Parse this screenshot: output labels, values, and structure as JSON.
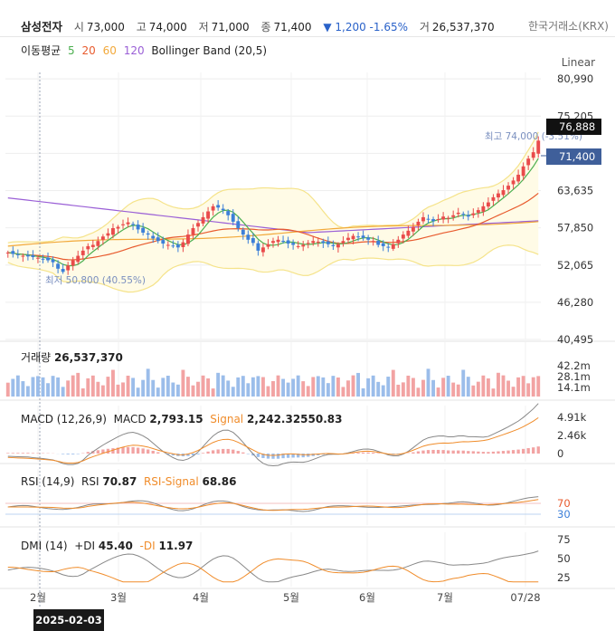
{
  "header": {
    "name": "삼성전자",
    "open_label": "시",
    "open": "73,000",
    "high_label": "고",
    "high": "74,000",
    "low_label": "저",
    "low": "71,000",
    "close_label": "종",
    "close": "71,400",
    "change": "▼ 1,200 -1.65%",
    "volume_label": "거",
    "volume": "26,537,370",
    "exchange": "한국거래소(KRX)"
  },
  "legend": {
    "ma_label": "이동평균",
    "ma5": "5",
    "ma20": "20",
    "ma60": "60",
    "ma120": "120",
    "bb": "Bollinger Band (20,5)",
    "scale": "Linear"
  },
  "colors": {
    "up": "#e94b4b",
    "down": "#3c7fd8",
    "ma5": "#4caf50",
    "ma20": "#e85b2e",
    "ma60": "#f2a93b",
    "ma120": "#9a5fd6",
    "bb": "#f5e38a",
    "bbfill": "#fffbe6",
    "grid": "#eeeeee"
  },
  "price_panel": {
    "yticks": [
      "80,990",
      "75,205",
      "69,420",
      "63,635",
      "57,850",
      "52,065",
      "46,280",
      "40,495"
    ],
    "max_label": "최고 74,000 (-3.51%)",
    "min_label": "최저 50,800 (40.55%)",
    "tag_high": "76,888",
    "tag_close": "71,400"
  },
  "volume_panel": {
    "label": "거래량",
    "value": "26,537,370",
    "yticks": [
      "42.2m",
      "28.1m",
      "14.1m"
    ]
  },
  "macd_panel": {
    "label": "MACD (12,26,9)",
    "macd_label": "MACD",
    "macd": "2,793.15",
    "signal_label": "Signal",
    "signal": "2,242.32550.83",
    "yticks": [
      "4.91k",
      "2.46k",
      "0"
    ]
  },
  "rsi_panel": {
    "label": "RSI (14,9)",
    "rsi_label": "RSI",
    "rsi": "70.87",
    "sig_label": "RSI-Signal",
    "sig": "68.86",
    "yticks": [
      "70",
      "30"
    ]
  },
  "dmi_panel": {
    "label": "DMI (14)",
    "pdi_label": "+DI",
    "pdi": "45.40",
    "mdi_label": "-DI",
    "mdi": "11.97",
    "yticks": [
      "75",
      "50",
      "25"
    ]
  },
  "xaxis": {
    "ticks": [
      "2월",
      "3월",
      "4월",
      "5월",
      "6월",
      "7월",
      "07/28"
    ]
  },
  "crosshair_date": "2025-02-03",
  "chart_data": {
    "type": "candlestick",
    "title": "삼성전자",
    "price_range": [
      40495,
      82000
    ],
    "closes": [
      54000,
      53800,
      53600,
      53500,
      53400,
      53300,
      53200,
      53000,
      52800,
      52500,
      51500,
      51000,
      52000,
      52800,
      53500,
      54300,
      55000,
      55200,
      55800,
      56500,
      57000,
      57800,
      58000,
      58400,
      58700,
      58300,
      57600,
      57100,
      56800,
      56200,
      55800,
      55400,
      55200,
      55000,
      54800,
      55600,
      56800,
      57800,
      58600,
      59500,
      60400,
      61200,
      61000,
      60600,
      59800,
      58800,
      57800,
      56800,
      56000,
      55500,
      54300,
      54800,
      55300,
      55800,
      56000,
      55700,
      55400,
      55200,
      55000,
      55200,
      55500,
      55800,
      55700,
      55500,
      55300,
      55000,
      55300,
      55800,
      56300,
      56600,
      56400,
      56300,
      56000,
      55800,
      55200,
      55000,
      54800,
      55300,
      56000,
      56800,
      57400,
      58000,
      58800,
      59500,
      59200,
      58900,
      59200,
      59600,
      59400,
      59800,
      60200,
      60000,
      59600,
      60100,
      60600,
      61200,
      61800,
      62600,
      63200,
      63700,
      64400,
      65200,
      66100,
      67400,
      68600,
      69600,
      71400
    ],
    "volume_range": [
      0,
      42200000
    ],
    "macd_range": [
      -800,
      4910
    ],
    "rsi_range": [
      0,
      100
    ],
    "dmi_range": [
      0,
      100
    ]
  }
}
